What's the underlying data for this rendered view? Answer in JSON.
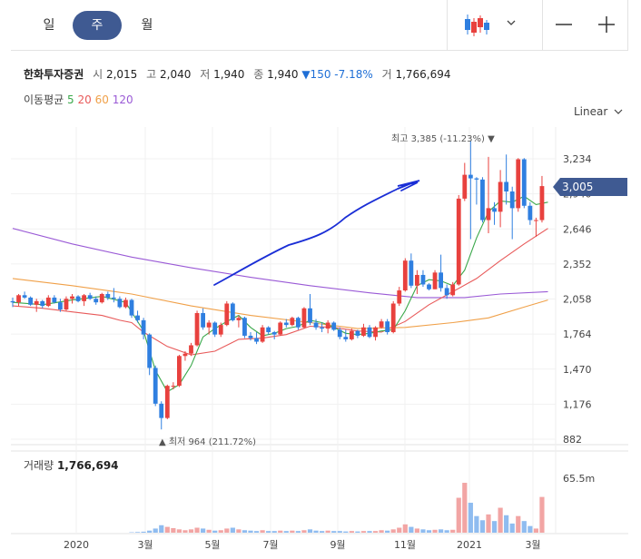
{
  "tabs": [
    {
      "label": "일",
      "active": false
    },
    {
      "label": "주",
      "active": true
    },
    {
      "label": "월",
      "active": false
    }
  ],
  "toolbar": {
    "candle_icon": "candlestick-icon",
    "dropdown_icon": "chevron-down-icon",
    "zoom_out_icon": "minus-icon",
    "zoom_in_icon": "plus-icon"
  },
  "stock": {
    "name": "한화투자증권",
    "open_label": "시",
    "open": "2,015",
    "high_label": "고",
    "high": "2,040",
    "low_label": "저",
    "low": "1,940",
    "close_label": "종",
    "close": "1,940",
    "change": "▼150",
    "change_pct": "-7.18%",
    "volume_label": "거",
    "volume": "1,766,694"
  },
  "moving_average": {
    "label": "이동평균",
    "periods": [
      {
        "value": "5",
        "color": "#3aa84a"
      },
      {
        "value": "20",
        "color": "#e85a5a"
      },
      {
        "value": "60",
        "color": "#f0a048"
      },
      {
        "value": "120",
        "color": "#9a5ad6"
      }
    ]
  },
  "scale_mode": "Linear",
  "current_price": "3,005",
  "annotations": {
    "high": "최고 3,385 (-11.23%) ▼",
    "low": "▲ 최저 964 (211.72%)"
  },
  "volume_panel": {
    "label": "거래량",
    "value": "1,766,694",
    "axis_label": "65.5m"
  },
  "colors": {
    "up": "#e8413e",
    "down": "#2f7fe0",
    "accent": "#3f5a92",
    "drawing": "#1a2ed6"
  },
  "chart_data": {
    "type": "candlestick",
    "y_ticks": [
      "3,234",
      "2,940",
      "2,646",
      "2,352",
      "2,058",
      "1,764",
      "1,470",
      "1,176",
      "882"
    ],
    "ylim": [
      882,
      3234
    ],
    "x_ticks": [
      "2020",
      "3월",
      "5월",
      "7월",
      "9월",
      "11월",
      "2021",
      "3월"
    ],
    "grid": true,
    "candles": [
      [
        2040,
        2070,
        1990,
        2030
      ],
      [
        2030,
        2100,
        2000,
        2090
      ],
      [
        2090,
        2120,
        2060,
        2070
      ],
      [
        2070,
        2080,
        2000,
        2010
      ],
      [
        2010,
        2060,
        1950,
        2040
      ],
      [
        2040,
        2050,
        1980,
        2000
      ],
      [
        2000,
        2090,
        1990,
        2070
      ],
      [
        2070,
        2090,
        2020,
        2030
      ],
      [
        2030,
        2060,
        1950,
        1970
      ],
      [
        1970,
        2080,
        1960,
        2060
      ],
      [
        2060,
        2100,
        2020,
        2080
      ],
      [
        2080,
        2090,
        2030,
        2040
      ],
      [
        2040,
        2100,
        2000,
        2090
      ],
      [
        2090,
        2110,
        2050,
        2060
      ],
      [
        2060,
        2080,
        2010,
        2030
      ],
      [
        2030,
        2110,
        2020,
        2100
      ],
      [
        2100,
        2120,
        2050,
        2070
      ],
      [
        2070,
        2150,
        2030,
        2060
      ],
      [
        2060,
        2080,
        1980,
        1990
      ],
      [
        1990,
        2070,
        1980,
        2050
      ],
      [
        2050,
        2060,
        1900,
        1920
      ],
      [
        1920,
        1960,
        1860,
        1880
      ],
      [
        1880,
        1900,
        1720,
        1760
      ],
      [
        1760,
        1770,
        1420,
        1480
      ],
      [
        1480,
        1500,
        1160,
        1180
      ],
      [
        1180,
        1200,
        964,
        1060
      ],
      [
        1060,
        1340,
        1050,
        1330
      ],
      [
        1330,
        1360,
        1300,
        1330
      ],
      [
        1330,
        1590,
        1320,
        1580
      ],
      [
        1580,
        1620,
        1540,
        1600
      ],
      [
        1600,
        1690,
        1580,
        1670
      ],
      [
        1670,
        1960,
        1660,
        1940
      ],
      [
        1940,
        1980,
        1800,
        1820
      ],
      [
        1820,
        1880,
        1760,
        1860
      ],
      [
        1860,
        1870,
        1740,
        1760
      ],
      [
        1760,
        1860,
        1740,
        1840
      ],
      [
        1840,
        2040,
        1830,
        2020
      ],
      [
        2020,
        2030,
        1870,
        1880
      ],
      [
        1880,
        1920,
        1820,
        1900
      ],
      [
        1900,
        1910,
        1730,
        1750
      ],
      [
        1750,
        1780,
        1710,
        1730
      ],
      [
        1730,
        1780,
        1680,
        1700
      ],
      [
        1700,
        1840,
        1690,
        1820
      ],
      [
        1820,
        1830,
        1760,
        1780
      ],
      [
        1780,
        1790,
        1720,
        1760
      ],
      [
        1760,
        1870,
        1750,
        1860
      ],
      [
        1860,
        1890,
        1820,
        1840
      ],
      [
        1840,
        1910,
        1830,
        1900
      ],
      [
        1900,
        1910,
        1800,
        1820
      ],
      [
        1820,
        1990,
        1810,
        1980
      ],
      [
        1980,
        2100,
        1840,
        1860
      ],
      [
        1860,
        1890,
        1800,
        1820
      ],
      [
        1820,
        1860,
        1780,
        1810
      ],
      [
        1810,
        1880,
        1770,
        1860
      ],
      [
        1860,
        1870,
        1790,
        1800
      ],
      [
        1800,
        1820,
        1720,
        1740
      ],
      [
        1740,
        1800,
        1700,
        1720
      ],
      [
        1720,
        1810,
        1710,
        1790
      ],
      [
        1790,
        1800,
        1730,
        1750
      ],
      [
        1750,
        1850,
        1740,
        1820
      ],
      [
        1820,
        1840,
        1730,
        1740
      ],
      [
        1740,
        1830,
        1710,
        1820
      ],
      [
        1820,
        1890,
        1810,
        1870
      ],
      [
        1870,
        1890,
        1760,
        1780
      ],
      [
        1780,
        2040,
        1770,
        2020
      ],
      [
        2020,
        2160,
        2000,
        2130
      ],
      [
        2130,
        2400,
        2120,
        2380
      ],
      [
        2380,
        2440,
        2150,
        2170
      ],
      [
        2170,
        2300,
        2100,
        2260
      ],
      [
        2260,
        2300,
        2160,
        2180
      ],
      [
        2180,
        2190,
        2130,
        2140
      ],
      [
        2140,
        2300,
        2140,
        2280
      ],
      [
        2280,
        2430,
        2120,
        2150
      ],
      [
        2150,
        2180,
        2060,
        2090
      ],
      [
        2090,
        2200,
        2080,
        2180
      ],
      [
        2180,
        2930,
        2170,
        2900
      ],
      [
        2900,
        3200,
        2880,
        3100
      ],
      [
        3100,
        3385,
        2560,
        3070
      ],
      [
        3070,
        3080,
        2850,
        3060
      ],
      [
        3060,
        3080,
        2700,
        2720
      ],
      [
        2720,
        3250,
        2610,
        2820
      ],
      [
        2820,
        2870,
        2680,
        2790
      ],
      [
        2790,
        3140,
        2660,
        3040
      ],
      [
        3040,
        3270,
        2850,
        2960
      ],
      [
        2960,
        3000,
        2560,
        2820
      ],
      [
        2820,
        3240,
        2790,
        3230
      ],
      [
        3230,
        3240,
        2820,
        2840
      ],
      [
        2840,
        2870,
        2680,
        2720
      ],
      [
        2720,
        2740,
        2580,
        2720
      ],
      [
        2720,
        3090,
        2700,
        3005
      ]
    ],
    "volume_max_label": "65.5m",
    "volume": [
      0,
      0,
      0,
      0,
      0,
      0,
      0,
      0,
      0,
      0,
      0,
      0,
      0,
      0,
      0,
      0,
      0,
      0,
      0,
      0,
      0.5,
      0.8,
      1.2,
      2.5,
      5,
      9,
      7,
      5.5,
      4,
      3,
      4,
      6,
      5,
      3.5,
      2.5,
      3,
      5,
      6,
      4,
      3,
      2.5,
      2,
      3,
      2,
      2,
      2.5,
      2,
      2.5,
      2,
      3,
      4,
      2.5,
      2,
      2.5,
      2,
      2,
      1.5,
      2,
      1.5,
      2,
      2,
      2,
      3,
      2.5,
      4,
      6,
      10,
      7,
      5,
      4,
      3,
      3.5,
      4,
      3,
      3.5,
      42,
      60,
      36,
      20,
      15,
      22,
      14,
      30,
      21,
      11,
      20,
      14,
      8,
      5,
      43
    ],
    "ma_5": [
      [
        0,
        2030
      ],
      [
        5,
        2010
      ],
      [
        10,
        2050
      ],
      [
        15,
        2080
      ],
      [
        19,
        2030
      ],
      [
        22,
        1790
      ],
      [
        24,
        1460
      ],
      [
        26,
        1280
      ],
      [
        28,
        1340
      ],
      [
        30,
        1500
      ],
      [
        32,
        1740
      ],
      [
        34,
        1810
      ],
      [
        36,
        1870
      ],
      [
        38,
        1920
      ],
      [
        40,
        1820
      ],
      [
        42,
        1750
      ],
      [
        44,
        1770
      ],
      [
        46,
        1810
      ],
      [
        48,
        1830
      ],
      [
        50,
        1880
      ],
      [
        52,
        1860
      ],
      [
        54,
        1820
      ],
      [
        56,
        1770
      ],
      [
        58,
        1760
      ],
      [
        60,
        1770
      ],
      [
        62,
        1790
      ],
      [
        64,
        1800
      ],
      [
        66,
        1960
      ],
      [
        68,
        2170
      ],
      [
        70,
        2220
      ],
      [
        72,
        2210
      ],
      [
        74,
        2170
      ],
      [
        76,
        2300
      ],
      [
        78,
        2570
      ],
      [
        80,
        2790
      ],
      [
        82,
        2880
      ],
      [
        84,
        2870
      ],
      [
        86,
        2920
      ],
      [
        88,
        2850
      ],
      [
        90,
        2870
      ]
    ],
    "ma_20": [
      [
        0,
        2000
      ],
      [
        5,
        1980
      ],
      [
        10,
        1950
      ],
      [
        15,
        1920
      ],
      [
        18,
        1880
      ],
      [
        20,
        1860
      ],
      [
        22,
        1780
      ],
      [
        26,
        1660
      ],
      [
        30,
        1590
      ],
      [
        34,
        1620
      ],
      [
        38,
        1720
      ],
      [
        42,
        1730
      ],
      [
        46,
        1760
      ],
      [
        50,
        1830
      ],
      [
        54,
        1820
      ],
      [
        58,
        1790
      ],
      [
        62,
        1780
      ],
      [
        66,
        1870
      ],
      [
        70,
        2010
      ],
      [
        74,
        2120
      ],
      [
        78,
        2230
      ],
      [
        82,
        2380
      ],
      [
        86,
        2520
      ],
      [
        90,
        2650
      ]
    ],
    "ma_60": [
      [
        0,
        2230
      ],
      [
        10,
        2170
      ],
      [
        20,
        2100
      ],
      [
        30,
        2000
      ],
      [
        40,
        1920
      ],
      [
        50,
        1860
      ],
      [
        58,
        1810
      ],
      [
        66,
        1820
      ],
      [
        74,
        1860
      ],
      [
        80,
        1900
      ],
      [
        86,
        1990
      ],
      [
        90,
        2050
      ]
    ],
    "ma_120": [
      [
        0,
        2650
      ],
      [
        10,
        2520
      ],
      [
        20,
        2410
      ],
      [
        30,
        2320
      ],
      [
        40,
        2240
      ],
      [
        50,
        2170
      ],
      [
        60,
        2110
      ],
      [
        68,
        2070
      ],
      [
        76,
        2070
      ],
      [
        82,
        2100
      ],
      [
        90,
        2120
      ]
    ],
    "drawn_trendline": true
  }
}
